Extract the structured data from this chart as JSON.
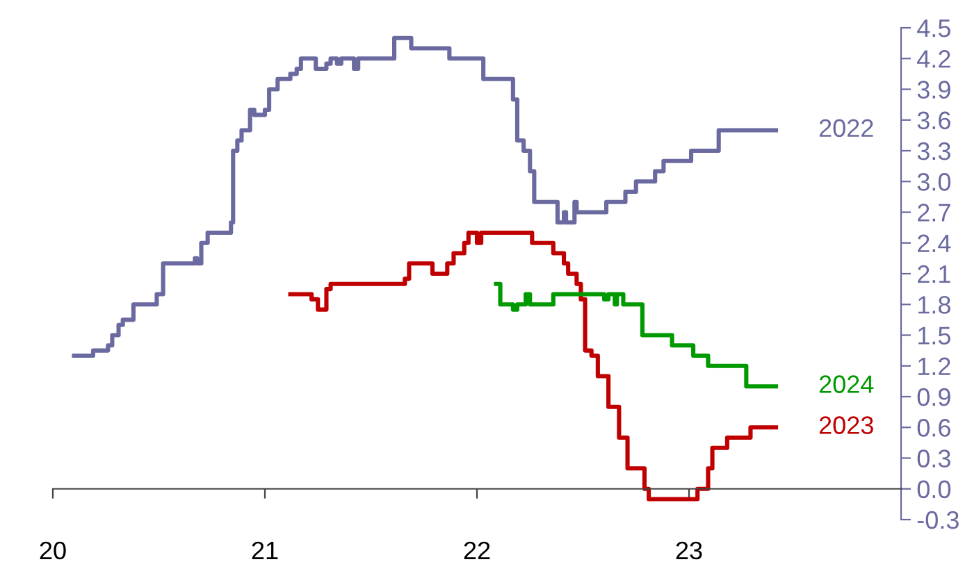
{
  "chart_data": {
    "type": "step",
    "xlim": [
      20,
      24
    ],
    "xticks": [
      20,
      21,
      22,
      23
    ],
    "ylim": [
      -0.3,
      4.5
    ],
    "yticks": [
      {
        "value": -0.3,
        "label": "-0.3"
      },
      {
        "value": 0,
        "label": "0.0"
      },
      0.3,
      0.6,
      0.9,
      1.2,
      1.5,
      1.8,
      2.1,
      2.4,
      2.7,
      {
        "value": 3,
        "label": "3.0"
      },
      3.3,
      3.6,
      3.9,
      4.2,
      4.5
    ],
    "legend": false,
    "series": [
      {
        "name": "2022",
        "color": "#6a6aa0",
        "x": [
          20.1,
          20.19,
          20.26,
          20.28,
          20.31,
          20.33,
          20.38,
          20.47,
          20.49,
          20.52,
          20.65,
          20.67,
          20.68,
          20.7,
          20.73,
          20.84,
          20.85,
          20.87,
          20.89,
          20.93,
          20.95,
          21.0,
          21.02,
          21.06,
          21.12,
          21.15,
          21.17,
          21.24,
          21.29,
          21.31,
          21.34,
          21.36,
          21.42,
          21.44,
          21.61,
          21.69,
          21.87,
          22.03,
          22.17,
          22.19,
          22.22,
          22.25,
          22.27,
          22.38,
          22.41,
          22.42,
          22.46,
          22.47,
          22.61,
          22.7,
          22.75,
          22.84,
          22.88,
          23.01,
          23.14,
          23.41
        ],
        "values": [
          1.3,
          1.35,
          1.4,
          1.5,
          1.6,
          1.65,
          1.8,
          1.8,
          1.9,
          2.2,
          2.2,
          2.25,
          2.2,
          2.4,
          2.5,
          2.6,
          3.3,
          3.4,
          3.5,
          3.7,
          3.65,
          3.7,
          3.9,
          4.0,
          4.05,
          4.1,
          4.2,
          4.1,
          4.15,
          4.2,
          4.15,
          4.2,
          4.1,
          4.2,
          4.4,
          4.3,
          4.2,
          4.0,
          3.8,
          3.4,
          3.3,
          3.1,
          2.8,
          2.6,
          2.7,
          2.6,
          2.8,
          2.7,
          2.8,
          2.9,
          3.0,
          3.1,
          3.2,
          3.3,
          3.5,
          3.5
        ]
      },
      {
        "name": "2023",
        "color": "#c00000",
        "x": [
          21.12,
          21.22,
          21.25,
          21.29,
          21.31,
          21.66,
          21.68,
          21.79,
          21.86,
          21.89,
          21.94,
          21.96,
          22.0,
          22.02,
          22.26,
          22.36,
          22.41,
          22.43,
          22.47,
          22.49,
          22.51,
          22.54,
          22.57,
          22.62,
          22.67,
          22.71,
          22.79,
          22.81,
          23.04,
          23.09,
          23.11,
          23.18,
          23.29,
          23.41
        ],
        "values": [
          1.9,
          1.85,
          1.75,
          1.95,
          2.0,
          2.05,
          2.2,
          2.1,
          2.2,
          2.3,
          2.4,
          2.5,
          2.4,
          2.5,
          2.4,
          2.3,
          2.2,
          2.1,
          2.0,
          1.85,
          1.35,
          1.3,
          1.1,
          0.8,
          0.5,
          0.2,
          0.0,
          -0.1,
          0.0,
          0.2,
          0.4,
          0.5,
          0.6,
          0.6
        ]
      },
      {
        "name": "2024",
        "color": "#009900",
        "x": [
          22.09,
          22.11,
          22.17,
          22.19,
          22.23,
          22.25,
          22.36,
          22.6,
          22.62,
          22.65,
          22.66,
          22.69,
          22.78,
          22.92,
          23.02,
          23.09,
          23.27,
          23.41
        ],
        "values": [
          2.0,
          1.8,
          1.75,
          1.8,
          1.9,
          1.8,
          1.9,
          1.85,
          1.9,
          1.8,
          1.9,
          1.8,
          1.5,
          1.4,
          1.3,
          1.2,
          1.0,
          1.0
        ]
      }
    ]
  }
}
